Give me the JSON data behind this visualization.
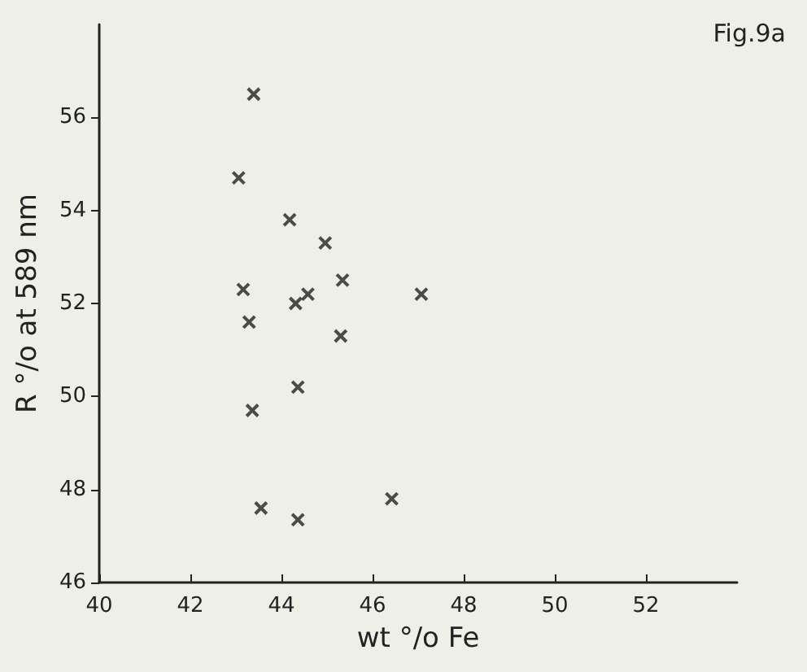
{
  "chart_data": {
    "type": "scatter",
    "title": "Fig.9a",
    "xlabel": "wt °/o Fe",
    "ylabel": "R °/o at 589 nm",
    "x": [
      43.39,
      43.06,
      44.18,
      44.96,
      43.16,
      45.34,
      47.07,
      44.58,
      44.31,
      43.29,
      45.3,
      44.36,
      43.36,
      43.55,
      44.36,
      46.42
    ],
    "values": [
      56.5,
      54.7,
      53.8,
      53.3,
      52.3,
      52.5,
      52.2,
      52.2,
      52.0,
      51.6,
      51.3,
      50.2,
      49.7,
      47.6,
      47.35,
      47.8
    ],
    "color": "#222222",
    "marker": "cross",
    "grid": false,
    "xlim": [
      40,
      54
    ],
    "xticks": [
      40,
      42,
      44,
      46,
      48,
      50,
      52
    ],
    "ylim": [
      46,
      58
    ],
    "yticks": [
      46,
      48,
      50,
      52,
      54,
      56
    ]
  }
}
